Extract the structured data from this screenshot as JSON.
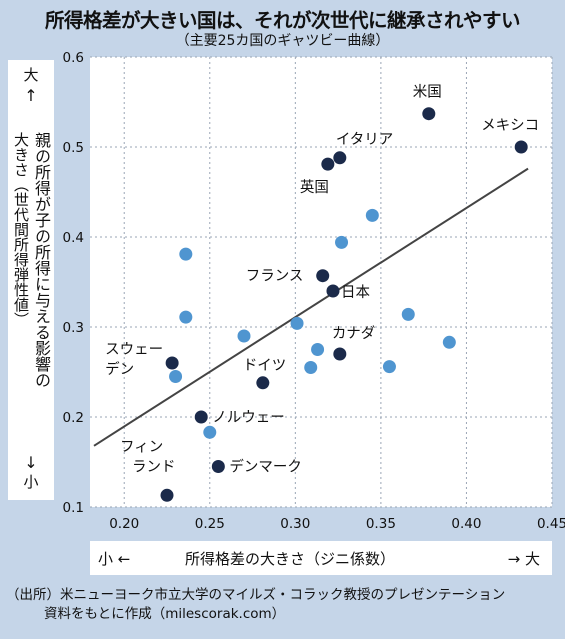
{
  "title": "所得格差が大きい国は、それが次世代に継承されやすい",
  "subtitle": "（主要25カ国のギャツビー曲線）",
  "y_axis": {
    "big": "大",
    "small": "小",
    "up_arrow": "↑",
    "down_arrow": "↓",
    "label_line1": "親の所得が子の所得に与える影響の",
    "label_line2": "大きさ（世代間所得弾性値）"
  },
  "x_axis": {
    "small": "小 ←",
    "big": "→ 大",
    "label": "所得格差の大きさ（ジニ係数）"
  },
  "source": {
    "line1": "（出所）米ニューヨーク市立大学のマイルズ・コラック教授のプレゼンテーション",
    "line2": "資料をもとに作成（milescorak.com）"
  },
  "colors": {
    "background": "#c5d5e8",
    "plot_bg": "#ffffff",
    "grid": "#9aa6b5",
    "labeled_point": "#1b2a4a",
    "other_point": "#4f95d0",
    "trend_line": "#444444"
  },
  "chart_data": {
    "type": "scatter",
    "xlim": [
      0.18,
      0.45
    ],
    "ylim": [
      0.1,
      0.6
    ],
    "x_ticks": [
      "0.20",
      "0.25",
      "0.30",
      "0.35",
      "0.40",
      "0.45"
    ],
    "y_ticks": [
      "0.1",
      "0.2",
      "0.3",
      "0.4",
      "0.5",
      "0.6"
    ],
    "grid": true,
    "labeled_points": [
      {
        "label": "米国",
        "x": 0.378,
        "y": 0.537
      },
      {
        "label": "メキシコ",
        "x": 0.432,
        "y": 0.5
      },
      {
        "label": "イタリア",
        "x": 0.326,
        "y": 0.488
      },
      {
        "label": "英国",
        "x": 0.319,
        "y": 0.481
      },
      {
        "label": "フランス",
        "x": 0.316,
        "y": 0.357
      },
      {
        "label": "日本",
        "x": 0.322,
        "y": 0.34
      },
      {
        "label": "カナダ",
        "x": 0.326,
        "y": 0.27
      },
      {
        "label": "スウェーデン",
        "x": 0.228,
        "y": 0.26
      },
      {
        "label": "ドイツ",
        "x": 0.281,
        "y": 0.238
      },
      {
        "label": "ノルウェー",
        "x": 0.245,
        "y": 0.2
      },
      {
        "label": "デンマーク",
        "x": 0.255,
        "y": 0.145
      },
      {
        "label": "フィンランド",
        "x": 0.225,
        "y": 0.113
      }
    ],
    "other_points": [
      {
        "x": 0.236,
        "y": 0.381
      },
      {
        "x": 0.236,
        "y": 0.311
      },
      {
        "x": 0.23,
        "y": 0.245
      },
      {
        "x": 0.25,
        "y": 0.183
      },
      {
        "x": 0.27,
        "y": 0.29
      },
      {
        "x": 0.301,
        "y": 0.304
      },
      {
        "x": 0.309,
        "y": 0.255
      },
      {
        "x": 0.313,
        "y": 0.275
      },
      {
        "x": 0.327,
        "y": 0.394
      },
      {
        "x": 0.345,
        "y": 0.424
      },
      {
        "x": 0.355,
        "y": 0.256
      },
      {
        "x": 0.366,
        "y": 0.314
      },
      {
        "x": 0.39,
        "y": 0.283
      }
    ],
    "trend_line": {
      "x": [
        0.18,
        0.436
      ],
      "y": [
        0.168,
        0.476
      ]
    }
  }
}
